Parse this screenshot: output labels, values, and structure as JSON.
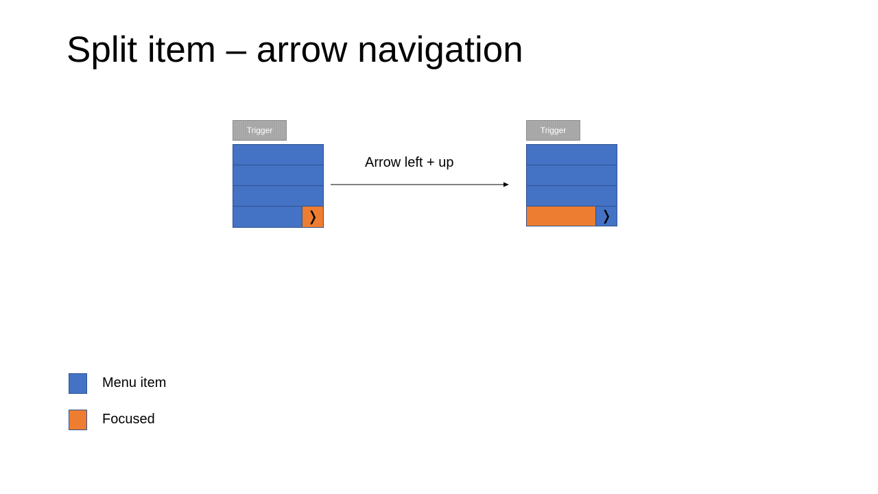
{
  "title": "Split item – arrow navigation",
  "colors": {
    "menu_item": "#4472c4",
    "focused": "#ed7d31",
    "trigger": "#a6a6a6"
  },
  "arrow": {
    "label": "Arrow left + up"
  },
  "before": {
    "trigger_label": "Trigger",
    "menu_item_count": 3,
    "split_main_state": "menu-item",
    "split_sub_state": "focused",
    "split_sub_glyph": "❭",
    "split_sub_icon": "chevron-right-icon"
  },
  "after": {
    "trigger_label": "Trigger",
    "menu_item_count": 3,
    "split_main_state": "focused",
    "split_sub_state": "menu-item",
    "split_sub_glyph": "❭",
    "split_sub_icon": "chevron-right-icon"
  },
  "legend": [
    {
      "label": "Menu item",
      "color": "#4472c4"
    },
    {
      "label": "Focused",
      "color": "#ed7d31"
    }
  ]
}
